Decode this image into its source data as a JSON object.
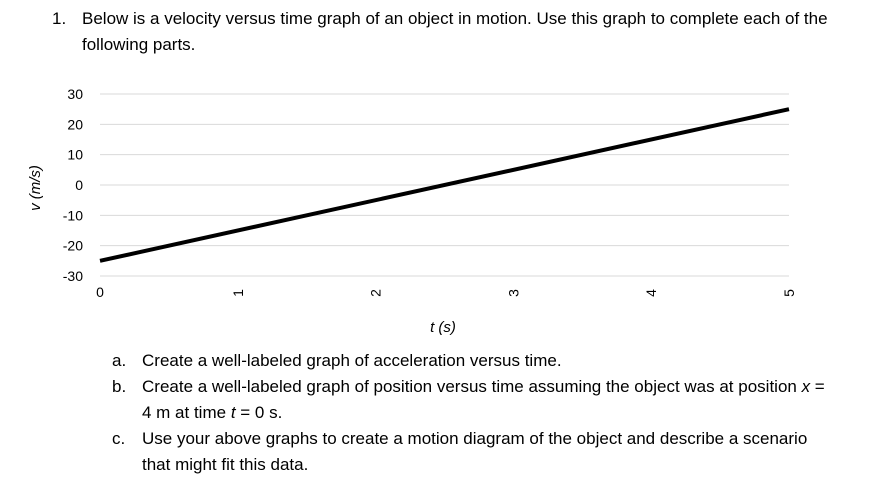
{
  "question": {
    "number": "1.",
    "text": "Below is a velocity versus time graph of an object in motion. Use this graph to complete each of the following parts."
  },
  "chart_data": {
    "type": "line",
    "title": "",
    "xlabel": "t (s)",
    "ylabel": "v (m/s)",
    "x_ticks": [
      0,
      1,
      2,
      3,
      4,
      5
    ],
    "y_ticks": [
      30,
      20,
      10,
      0,
      -10,
      -20,
      -30
    ],
    "xlim": [
      0,
      5
    ],
    "ylim": [
      -30,
      30
    ],
    "grid": "horizontal",
    "series": [
      {
        "x": [
          0,
          5
        ],
        "y": [
          -25,
          25
        ]
      }
    ],
    "line_color": "#000000",
    "grid_color": "#d9d9d9"
  },
  "parts": [
    {
      "label": "a.",
      "segments": [
        "Create a well-labeled graph of acceleration versus time."
      ]
    },
    {
      "label": "b.",
      "segments": [
        "Create a well-labeled graph of position versus time assuming the object was at position ",
        "x",
        " = 4 m at time ",
        "t",
        " = 0 s."
      ]
    },
    {
      "label": "c.",
      "segments": [
        "Use your above graphs to create a motion diagram of the object and describe a scenario that might fit this data."
      ]
    }
  ]
}
